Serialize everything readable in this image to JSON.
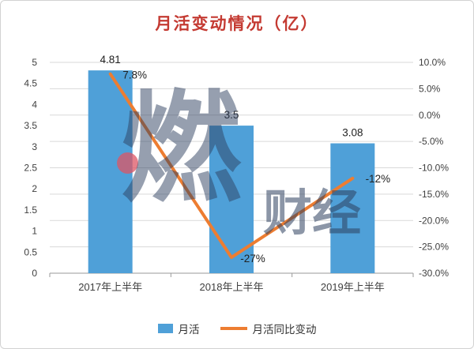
{
  "chart_data": {
    "type": "bar",
    "title": "月活变动情况（亿）",
    "title_color": "#c43a32",
    "categories": [
      "2017年上半年",
      "2018年上半年",
      "2019年上半年"
    ],
    "series": [
      {
        "name": "月活",
        "type": "bar",
        "axis": "left",
        "values": [
          4.81,
          3.5,
          3.08
        ],
        "labels": [
          "4.81",
          "3.5",
          "3.08"
        ],
        "color": "#4FA0D8"
      },
      {
        "name": "月活同比变动",
        "type": "line",
        "axis": "right",
        "values": [
          7.8,
          -27,
          -12
        ],
        "labels": [
          "7.8%",
          "-27%",
          "-12%"
        ],
        "color": "#ED7D31"
      }
    ],
    "left_axis": {
      "min": 0,
      "max": 5,
      "step": 0.5,
      "ticks": [
        "5",
        "4.5",
        "4",
        "3.5",
        "3",
        "2.5",
        "2",
        "1.5",
        "1",
        "0.5",
        "0"
      ]
    },
    "right_axis": {
      "min": -30,
      "max": 10,
      "step": 5,
      "ticks": [
        "10.0%",
        "5.0%",
        "0.0%",
        "-5.0%",
        "-10.0%",
        "-15.0%",
        "-20.0%",
        "-25.0%",
        "-30.0%"
      ]
    },
    "grid": true,
    "legend_position": "bottom"
  },
  "watermark": {
    "main": "燃",
    "sub": "财经"
  }
}
